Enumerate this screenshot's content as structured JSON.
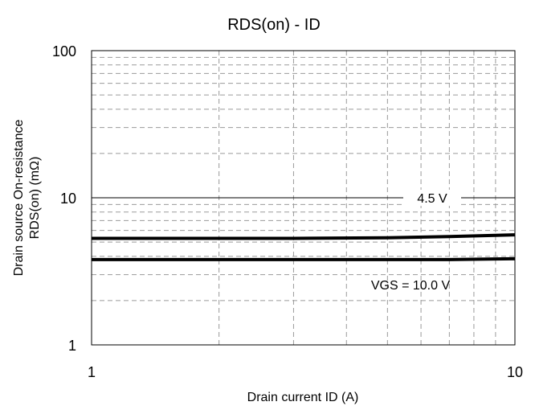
{
  "chart_data": {
    "type": "line",
    "title": "RDS(on) - ID",
    "xlabel": "Drain current ID (A)",
    "ylabel_line1": "Drain source On-resistance",
    "ylabel_line2": "RDS(on) (mΩ)",
    "x_scale": "log",
    "y_scale": "log",
    "xlim": [
      1,
      10
    ],
    "ylim": [
      1,
      100
    ],
    "x_tick_labels": [
      "1",
      "10"
    ],
    "y_tick_labels": [
      "1",
      "10",
      "100"
    ],
    "grid": true,
    "series": [
      {
        "name": "4.5 V",
        "x": [
          1,
          2,
          3,
          5,
          7,
          10
        ],
        "y": [
          5.3,
          5.3,
          5.3,
          5.35,
          5.45,
          5.6
        ]
      },
      {
        "name": "VGS = 10.0 V",
        "x": [
          1,
          2,
          3,
          5,
          7,
          10
        ],
        "y": [
          3.8,
          3.8,
          3.8,
          3.8,
          3.8,
          3.85
        ]
      }
    ]
  }
}
